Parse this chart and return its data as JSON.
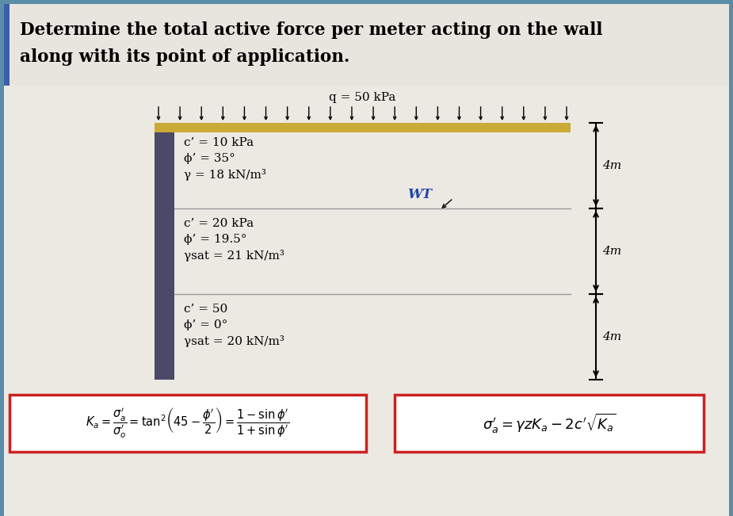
{
  "title_line1": "Determine the total active force per meter acting on the wall",
  "title_line2": "along with its point of application.",
  "bg_color": "#5a8da8",
  "content_bg": "#ece9e3",
  "title_bg": "#e8e5df",
  "wall_color": "#4a4a68",
  "surcharge_label": "q = 50 kPa",
  "layer1_c": "c’ = 10 kPa",
  "layer1_phi": "ϕ’ = 35°",
  "layer1_gamma": "γ = 18 kN/m³",
  "layer1_depth": "4m",
  "layer2_c": "c’ = 20 kPa",
  "layer2_phi": "ϕ’ = 19.5°",
  "layer2_gamma": "γsat = 21 kN/m³",
  "layer2_depth": "4m",
  "layer2_wt": "WT",
  "layer3_c": "c’ = 50",
  "layer3_phi": "ϕ’ = 0°",
  "layer3_gamma": "γsat = 20 kN/m³",
  "layer3_depth": "4m",
  "formula_box_color": "#cc2222",
  "gold_color": "#c9aa35",
  "divider_color": "#999999",
  "blue_bar_color": "#3a5faa",
  "wt_color": "#2244aa"
}
